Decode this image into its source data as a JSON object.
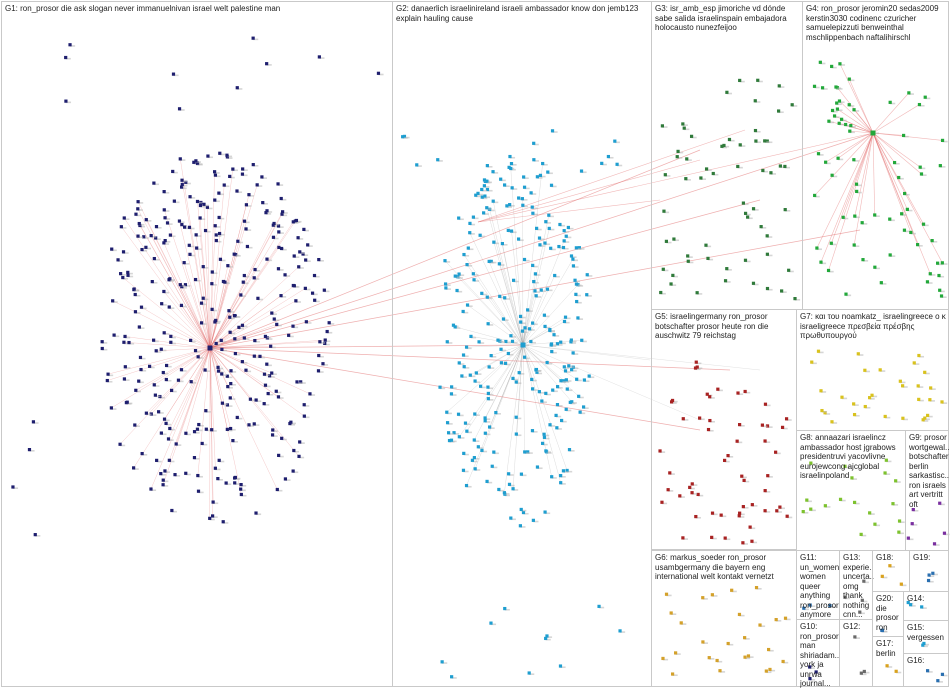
{
  "colors": {
    "G1": "#1e1e6e",
    "G2": "#1e9ed0",
    "G3": "#2f7a3a",
    "G4": "#22a83a",
    "G5": "#a82222",
    "G7": "#d9c21e",
    "G8": "#7dc22e",
    "G9": "#7a2fa0",
    "G6": "#d4a12a",
    "edge": "#9a9a9a",
    "cross_edge": "#e06060"
  },
  "groups": [
    {
      "id": "G1",
      "label": "G1: ron_prosor die ask slogan never immanuelnivan israel welt palestine man"
    },
    {
      "id": "G2",
      "label": "G2: danaerlich israelinireland israeli ambassador know don jemb123 explain hauling cause"
    },
    {
      "id": "G3",
      "label": "G3: isr_amb_esp jimoriche vd dónde sabe salida israelinspain embajadora holocausto nunezfeijoo"
    },
    {
      "id": "G4",
      "label": "G4: ron_prosor jeromin20 sedas2009 kerstin3030 codinenc czuricher samuelepizzuti benweinthal mschlippenbach naftalihirschl"
    },
    {
      "id": "G5",
      "label": "G5: israelingermany ron_prosor botschafter prosor heute ron die auschwitz 79 reichstag"
    },
    {
      "id": "G7",
      "label": "G7: και του noamkatz_ israelingreece ο κ israeligreece πρεσβεία πρέσβης πρωθυπουργού"
    },
    {
      "id": "G8",
      "label": "G8: annaazari israelincz ambassador host jgrabows presidentruvi yacovlivne eurojewcong ajcglobal israelinpoland"
    },
    {
      "id": "G9",
      "label": "G9: prosor wortgewal... botschafter berlin sarkastisc... ron israels art vertritt oft"
    },
    {
      "id": "G6",
      "label": "G6: markus_soeder ron_prosor usambgermany die bayern eng international welt kontakt vernetzt"
    },
    {
      "id": "G11",
      "label": "G11: un_women women queer anything ron_prosor anymore"
    },
    {
      "id": "G13",
      "label": "G13: experie... uncerta... omg thank nothing cnn..."
    },
    {
      "id": "G18",
      "label": "G18:"
    },
    {
      "id": "G19",
      "label": "G19:"
    },
    {
      "id": "G20",
      "label": "G20: die prosor ron"
    },
    {
      "id": "G14",
      "label": "G14:"
    },
    {
      "id": "G10",
      "label": "G10: ron_prosor man shiriadam... york ja unrwa journal..."
    },
    {
      "id": "G12",
      "label": "G12:"
    },
    {
      "id": "G15",
      "label": "G15: vergessen"
    },
    {
      "id": "G17",
      "label": "G17: berlin"
    },
    {
      "id": "G16",
      "label": "G16:"
    }
  ]
}
